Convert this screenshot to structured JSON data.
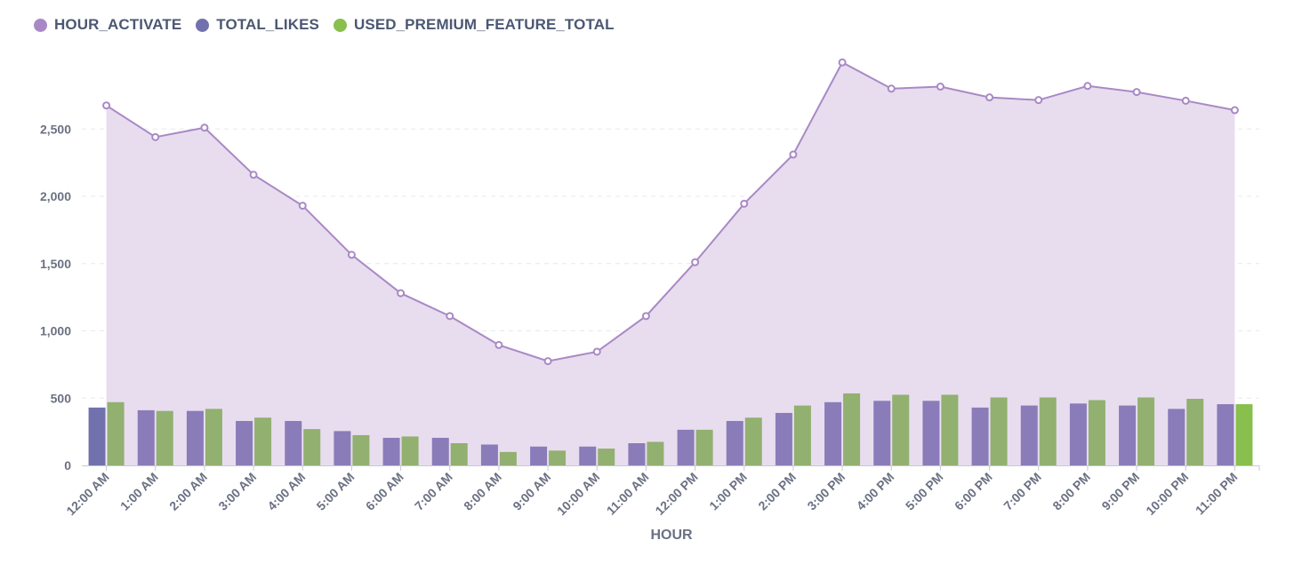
{
  "legend": [
    {
      "label": "HOUR_ACTIVATE",
      "color": "#a989c5"
    },
    {
      "label": "TOTAL_LIKES",
      "color": "#7172ad"
    },
    {
      "label": "USED_PREMIUM_FEATURE_TOTAL",
      "color": "#88bf4d"
    }
  ],
  "chart_data": {
    "type": "bar",
    "xlabel": "HOUR",
    "ylabel": "",
    "ylim": [
      0,
      2900
    ],
    "yticks": [
      0,
      500,
      1000,
      1500,
      2000,
      2500
    ],
    "ytick_labels": [
      "0",
      "500",
      "1,000",
      "1,500",
      "2,000",
      "2,500"
    ],
    "grid": true,
    "categories": [
      "12:00 AM",
      "1:00 AM",
      "2:00 AM",
      "3:00 AM",
      "4:00 AM",
      "5:00 AM",
      "6:00 AM",
      "7:00 AM",
      "8:00 AM",
      "9:00 AM",
      "10:00 AM",
      "11:00 AM",
      "12:00 PM",
      "1:00 PM",
      "2:00 PM",
      "3:00 PM",
      "4:00 PM",
      "5:00 PM",
      "6:00 PM",
      "7:00 PM",
      "8:00 PM",
      "9:00 PM",
      "10:00 PM",
      "11:00 PM"
    ],
    "series": [
      {
        "name": "HOUR_ACTIVATE",
        "type": "area",
        "color": "#a989c5",
        "values": [
          2675,
          2440,
          2510,
          2160,
          1930,
          1565,
          1280,
          1110,
          895,
          775,
          845,
          1110,
          1510,
          1945,
          2310,
          2995,
          2800,
          2815,
          2735,
          2715,
          2820,
          2775,
          2710,
          2640
        ]
      },
      {
        "name": "TOTAL_LIKES",
        "type": "bar",
        "color": "#7172ad",
        "values": [
          430,
          410,
          405,
          330,
          330,
          255,
          205,
          205,
          155,
          140,
          140,
          165,
          265,
          330,
          390,
          470,
          480,
          480,
          430,
          445,
          460,
          445,
          420,
          455
        ]
      },
      {
        "name": "USED_PREMIUM_FEATURE_TOTAL",
        "type": "bar",
        "color": "#88bf4d",
        "values": [
          470,
          405,
          420,
          355,
          270,
          225,
          215,
          165,
          100,
          110,
          125,
          175,
          265,
          355,
          445,
          535,
          525,
          525,
          505,
          505,
          485,
          505,
          495,
          455
        ]
      }
    ]
  }
}
